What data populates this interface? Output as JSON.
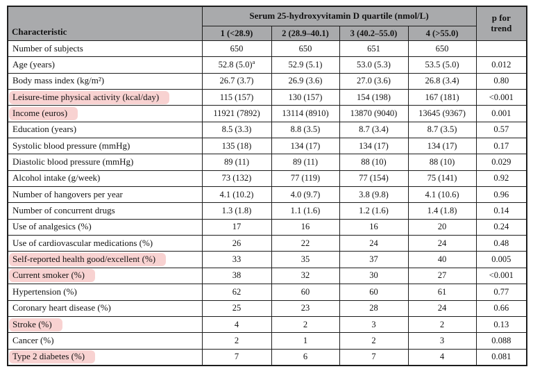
{
  "table": {
    "corner_header": "Characteristic",
    "group_header": "Serum 25-hydroxyvitamin D quartile (nmol/L)",
    "p_header": "p for\ntrend",
    "quartile_headers": [
      "1 (<28.9)",
      "2 (28.9–40.1)",
      "3 (40.2–55.0)",
      "4 (>55.0)"
    ],
    "rows": [
      {
        "label": "Number of subjects",
        "highlight": false,
        "values": [
          "650",
          "650",
          "651",
          "650"
        ],
        "p": ""
      },
      {
        "label": "Age (years)",
        "highlight": false,
        "values": [
          "52.8 (5.0)^a",
          "52.9 (5.1)",
          "53.0 (5.3)",
          "53.5 (5.0)"
        ],
        "p": "0.012"
      },
      {
        "label": "Body mass index (kg/m²)",
        "highlight": false,
        "values": [
          "26.7 (3.7)",
          "26.9 (3.6)",
          "27.0 (3.6)",
          "26.8 (3.4)"
        ],
        "p": "0.80"
      },
      {
        "label": "Leisure-time physical activity (kcal/day)",
        "highlight": true,
        "values": [
          "115 (157)",
          "130 (157)",
          "154 (198)",
          "167 (181)"
        ],
        "p": "<0.001"
      },
      {
        "label": "Income (euros)",
        "highlight": true,
        "values": [
          "11921 (7892)",
          "13114 (8910)",
          "13870 (9040)",
          "13645 (9367)"
        ],
        "p": "0.001"
      },
      {
        "label": "Education (years)",
        "highlight": false,
        "values": [
          "8.5 (3.3)",
          "8.8 (3.5)",
          "8.7 (3.4)",
          "8.7 (3.5)"
        ],
        "p": "0.57"
      },
      {
        "label": "Systolic blood pressure (mmHg)",
        "highlight": false,
        "values": [
          "135 (18)",
          "134 (17)",
          "134 (17)",
          "134 (17)"
        ],
        "p": "0.17"
      },
      {
        "label": "Diastolic blood pressure (mmHg)",
        "highlight": false,
        "values": [
          "89 (11)",
          "89 (11)",
          "88 (10)",
          "88 (10)"
        ],
        "p": "0.029"
      },
      {
        "label": "Alcohol intake (g/week)",
        "highlight": false,
        "values": [
          "73 (132)",
          "77 (119)",
          "77 (154)",
          "75 (141)"
        ],
        "p": "0.92"
      },
      {
        "label": "Number of hangovers per year",
        "highlight": false,
        "values": [
          "4.1 (10.2)",
          "4.0 (9.7)",
          "3.8 (9.8)",
          "4.1 (10.6)"
        ],
        "p": "0.96"
      },
      {
        "label": "Number of concurrent drugs",
        "highlight": false,
        "values": [
          "1.3 (1.8)",
          "1.1 (1.6)",
          "1.2 (1.6)",
          "1.4 (1.8)"
        ],
        "p": "0.14"
      },
      {
        "label": "Use of analgesics (%)",
        "highlight": false,
        "values": [
          "17",
          "16",
          "16",
          "20"
        ],
        "p": "0.24"
      },
      {
        "label": "Use of cardiovascular medications (%)",
        "highlight": false,
        "values": [
          "26",
          "22",
          "24",
          "24"
        ],
        "p": "0.48"
      },
      {
        "label": "Self-reported health good/excellent (%)",
        "highlight": true,
        "values": [
          "33",
          "35",
          "37",
          "40"
        ],
        "p": "0.005"
      },
      {
        "label": "Current smoker (%)",
        "highlight": true,
        "values": [
          "38",
          "32",
          "30",
          "27"
        ],
        "p": "<0.001"
      },
      {
        "label": "Hypertension (%)",
        "highlight": false,
        "values": [
          "62",
          "60",
          "60",
          "61"
        ],
        "p": "0.77"
      },
      {
        "label": "Coronary heart disease (%)",
        "highlight": false,
        "values": [
          "25",
          "23",
          "28",
          "24"
        ],
        "p": "0.66"
      },
      {
        "label": "Stroke (%)",
        "highlight": true,
        "values": [
          "4",
          "2",
          "3",
          "2"
        ],
        "p": "0.13"
      },
      {
        "label": "Cancer (%)",
        "highlight": false,
        "values": [
          "2",
          "1",
          "2",
          "3"
        ],
        "p": "0.088"
      },
      {
        "label": "Type 2 diabetes (%)",
        "highlight": true,
        "values": [
          "7",
          "6",
          "7",
          "4"
        ],
        "p": "0.081"
      }
    ]
  },
  "colors": {
    "header_bg": "#a9aaac",
    "highlight_pink": "#f8d2d1",
    "border": "#1c1c1c"
  }
}
